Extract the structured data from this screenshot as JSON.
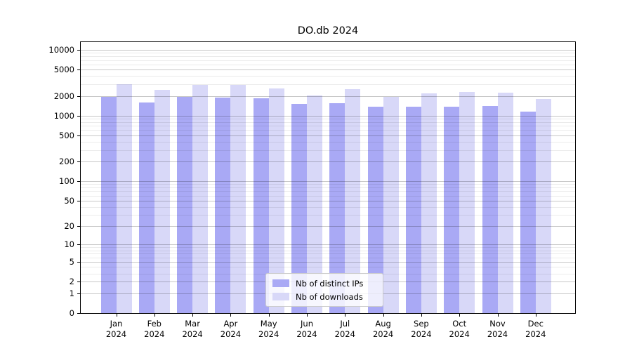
{
  "chart_data": {
    "type": "bar",
    "title": "DO.db 2024",
    "x_months": [
      "Jan",
      "Feb",
      "Mar",
      "Apr",
      "May",
      "Jun",
      "Jul",
      "Aug",
      "Sep",
      "Oct",
      "Nov",
      "Dec"
    ],
    "x_year": "2024",
    "series": [
      {
        "name": "Nb of distinct IPs",
        "color": "#a9a9f5",
        "values": [
          1950,
          1600,
          1950,
          1870,
          1830,
          1500,
          1550,
          1350,
          1350,
          1360,
          1400,
          1150
        ]
      },
      {
        "name": "Nb of downloads",
        "color": "#d8d8f8",
        "values": [
          3000,
          2450,
          2900,
          2900,
          2600,
          2050,
          2500,
          1950,
          2200,
          2300,
          2250,
          1800
        ]
      }
    ],
    "y_scale": "log1p",
    "y_ticks": [
      0,
      1,
      2,
      5,
      10,
      20,
      50,
      100,
      200,
      500,
      1000,
      2000,
      5000,
      10000
    ],
    "y_axis_max": 13100,
    "grid": "both",
    "legend_position": "lower center",
    "grid_major_color": "#c6c6c6",
    "grid_minor_color": "#ebebeb"
  }
}
